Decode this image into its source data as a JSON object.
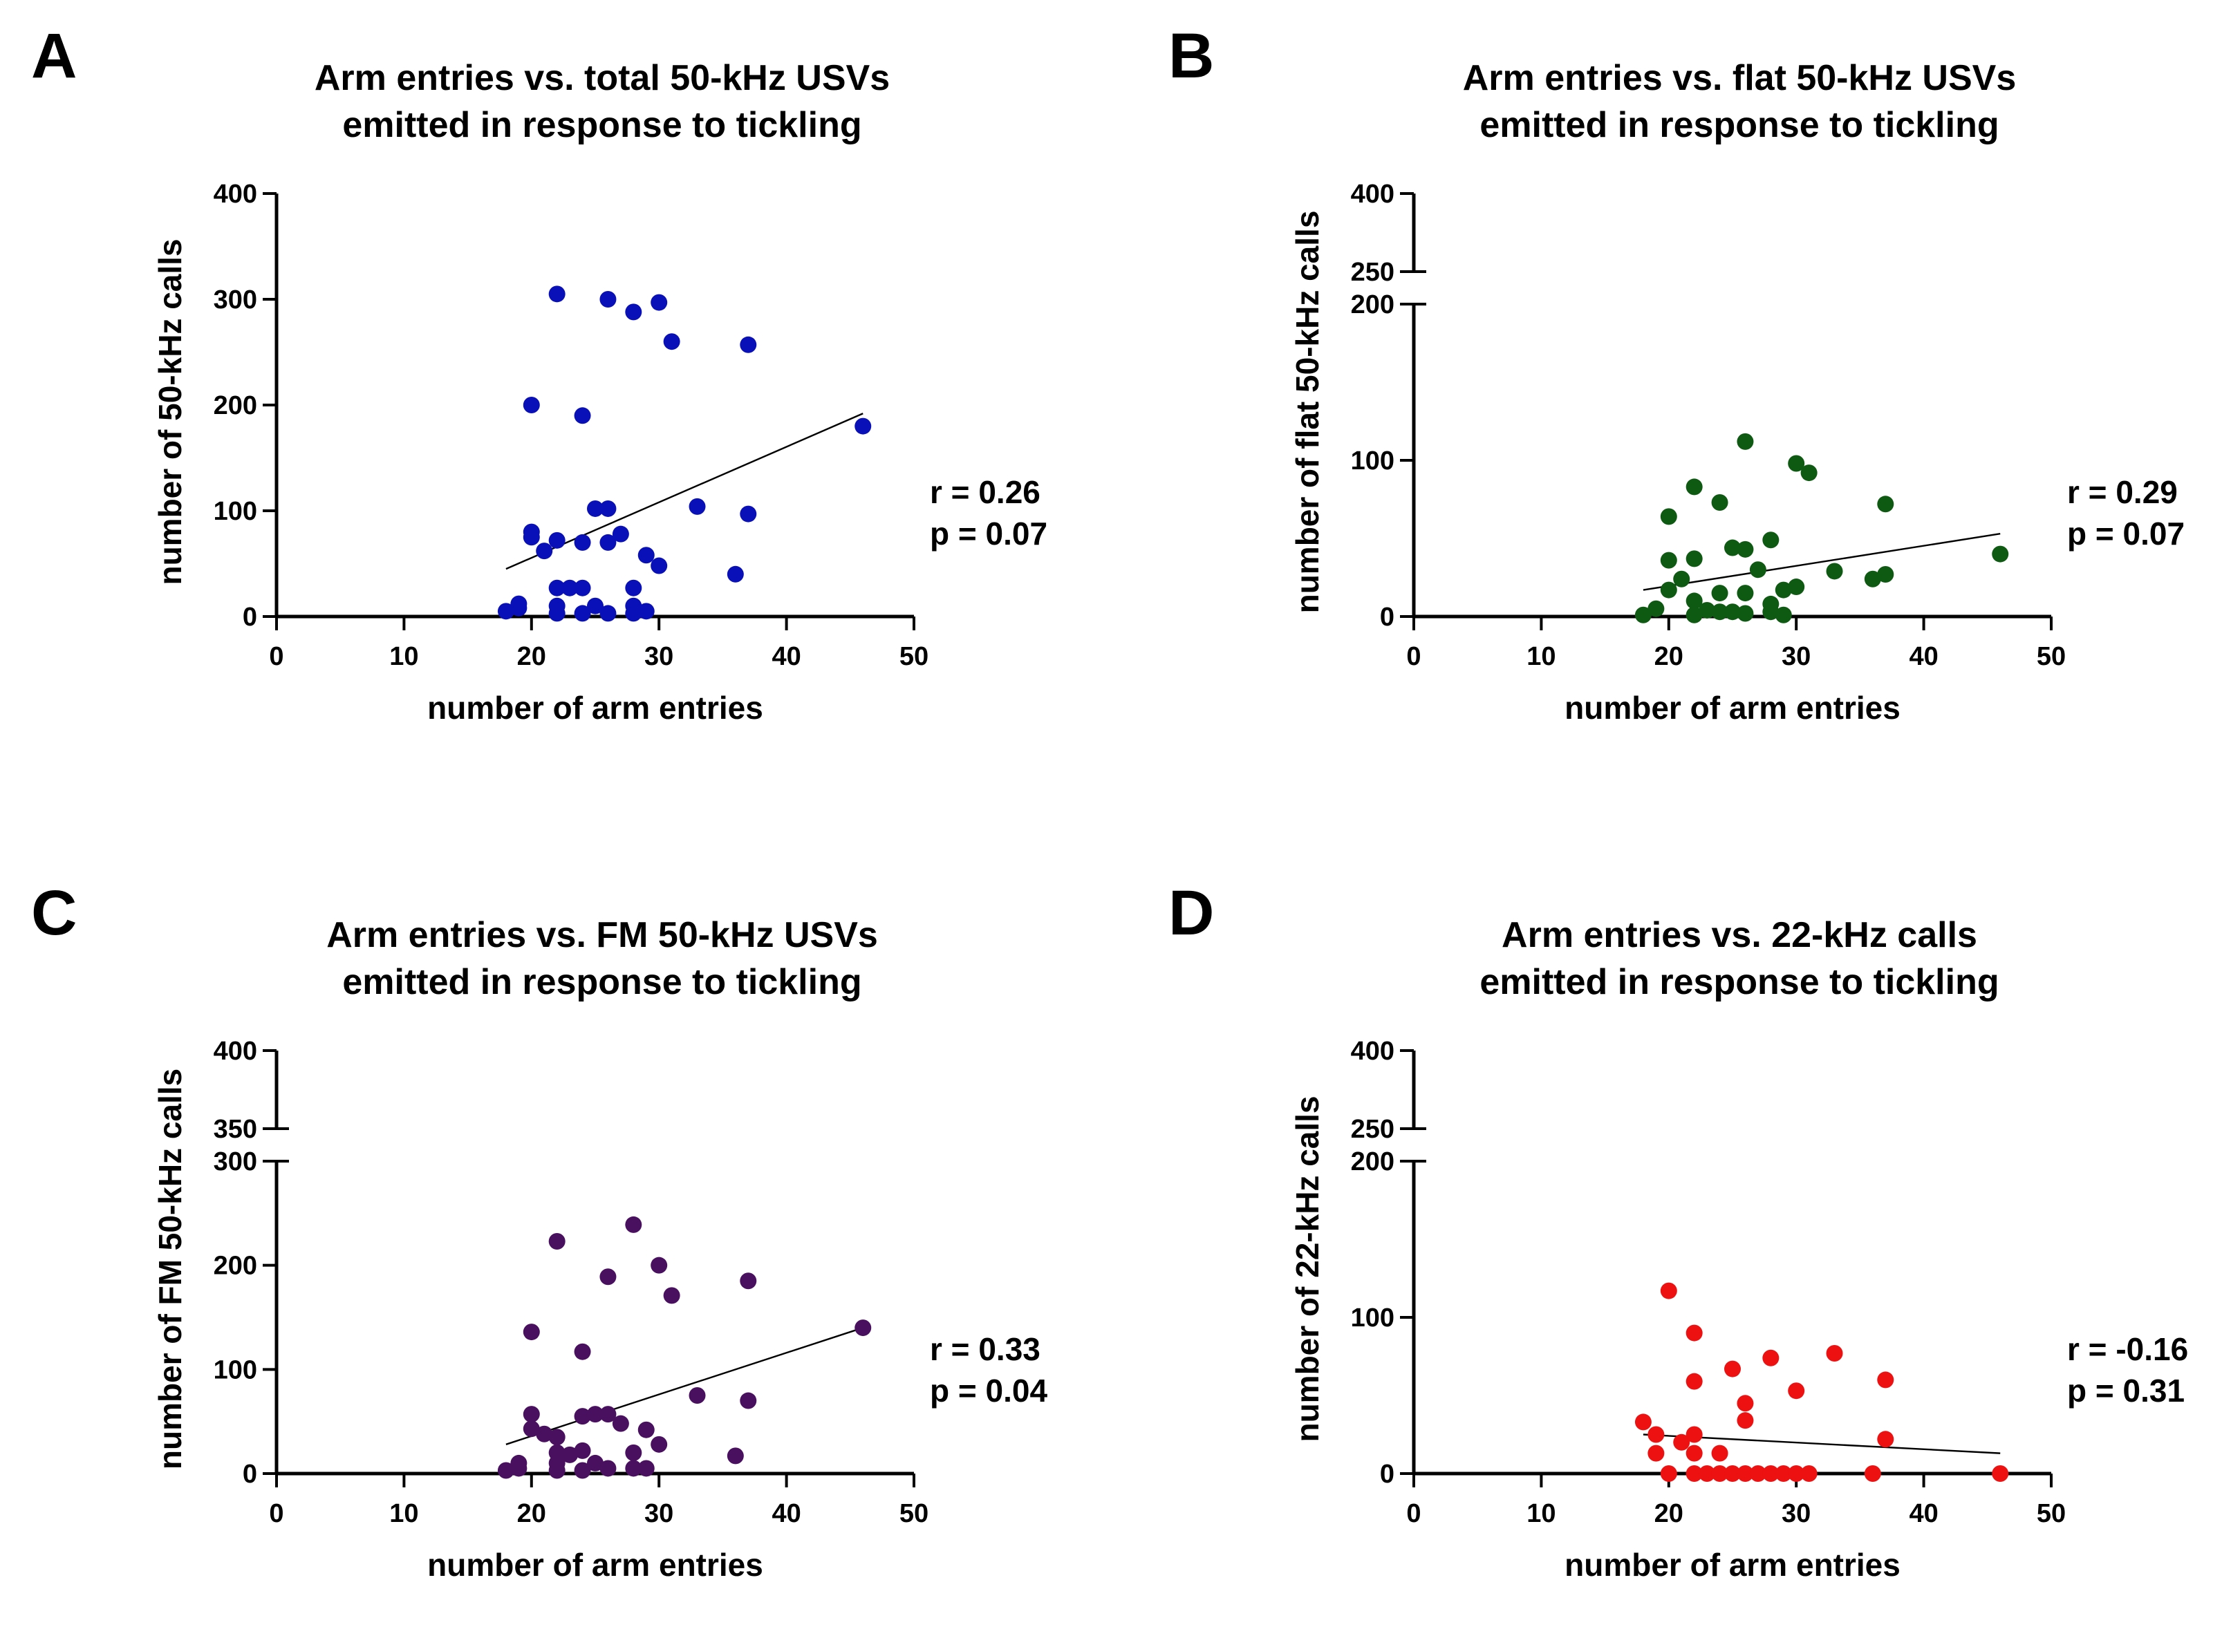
{
  "chart_data": [
    {
      "type": "scatter",
      "panel": "A",
      "title": [
        "Arm entries vs. total 50-kHz USVs",
        "emitted in response to tickling"
      ],
      "xlabel": "number of arm entries",
      "ylabel": "number of 50-kHz calls",
      "xlim": [
        0,
        50
      ],
      "xticks": [
        "0",
        "10",
        "20",
        "30",
        "40",
        "50"
      ],
      "ylim": [
        0,
        400
      ],
      "yticks": [
        "0",
        "100",
        "200",
        "300",
        "400"
      ],
      "color": "#0a10b8",
      "stats": [
        "r = 0.26",
        "p = 0.07"
      ],
      "fit": {
        "x": [
          18,
          46
        ],
        "y": [
          45,
          192
        ]
      },
      "points": [
        [
          18,
          5
        ],
        [
          19,
          8
        ],
        [
          19,
          12
        ],
        [
          20,
          80
        ],
        [
          20,
          75
        ],
        [
          20,
          200
        ],
        [
          21,
          62
        ],
        [
          22,
          305
        ],
        [
          22,
          72
        ],
        [
          22,
          27
        ],
        [
          22,
          10
        ],
        [
          22,
          3
        ],
        [
          23,
          27
        ],
        [
          24,
          190
        ],
        [
          24,
          70
        ],
        [
          24,
          27
        ],
        [
          24,
          3
        ],
        [
          25,
          102
        ],
        [
          25,
          10
        ],
        [
          26,
          300
        ],
        [
          26,
          102
        ],
        [
          26,
          70
        ],
        [
          26,
          3
        ],
        [
          27,
          78
        ],
        [
          28,
          288
        ],
        [
          28,
          27
        ],
        [
          28,
          10
        ],
        [
          28,
          3
        ],
        [
          29,
          58
        ],
        [
          29,
          5
        ],
        [
          30,
          297
        ],
        [
          30,
          48
        ],
        [
          31,
          260
        ],
        [
          33,
          104
        ],
        [
          36,
          40
        ],
        [
          37,
          257
        ],
        [
          37,
          97
        ],
        [
          46,
          180
        ]
      ]
    },
    {
      "type": "scatter",
      "panel": "B",
      "title": [
        "Arm entries vs. flat 50-kHz USVs",
        "emitted in response to tickling"
      ],
      "xlabel": "number of arm entries",
      "ylabel": "number of flat 50-kHz calls",
      "xlim": [
        0,
        50
      ],
      "xticks": [
        "0",
        "10",
        "20",
        "30",
        "40",
        "50"
      ],
      "ylim": [
        0,
        200
      ],
      "yticks": [
        "0",
        "100",
        "200"
      ],
      "break_ticks": [
        "250",
        "400"
      ],
      "color": "#0f5a12",
      "stats": [
        "r = 0.29",
        "p = 0.07"
      ],
      "fit": {
        "x": [
          18,
          46
        ],
        "y": [
          17,
          53
        ]
      },
      "points": [
        [
          18,
          1
        ],
        [
          19,
          5
        ],
        [
          20,
          64
        ],
        [
          20,
          36
        ],
        [
          20,
          17
        ],
        [
          21,
          24
        ],
        [
          22,
          83
        ],
        [
          22,
          37
        ],
        [
          22,
          10
        ],
        [
          22,
          1
        ],
        [
          23,
          4
        ],
        [
          24,
          73
        ],
        [
          24,
          15
        ],
        [
          24,
          3
        ],
        [
          25,
          44
        ],
        [
          25,
          3
        ],
        [
          26,
          112
        ],
        [
          26,
          43
        ],
        [
          26,
          15
        ],
        [
          26,
          2
        ],
        [
          27,
          30
        ],
        [
          28,
          49
        ],
        [
          28,
          8
        ],
        [
          28,
          3
        ],
        [
          29,
          17
        ],
        [
          29,
          1
        ],
        [
          30,
          98
        ],
        [
          30,
          19
        ],
        [
          31,
          92
        ],
        [
          33,
          29
        ],
        [
          36,
          24
        ],
        [
          37,
          72
        ],
        [
          37,
          27
        ],
        [
          46,
          40
        ]
      ]
    },
    {
      "type": "scatter",
      "panel": "C",
      "title": [
        "Arm entries vs. FM 50-kHz USVs",
        "emitted in response to tickling"
      ],
      "xlabel": "number of arm entries",
      "ylabel": "number of FM 50-kHz calls",
      "xlim": [
        0,
        50
      ],
      "xticks": [
        "0",
        "10",
        "20",
        "30",
        "40",
        "50"
      ],
      "ylim": [
        0,
        300
      ],
      "yticks": [
        "0",
        "100",
        "200",
        "300"
      ],
      "break_ticks": [
        "350",
        "400"
      ],
      "color": "#4a1060",
      "stats": [
        "r = 0.33",
        "p = 0.04"
      ],
      "fit": {
        "x": [
          18,
          46
        ],
        "y": [
          28,
          140
        ]
      },
      "points": [
        [
          18,
          3
        ],
        [
          19,
          5
        ],
        [
          19,
          10
        ],
        [
          20,
          136
        ],
        [
          20,
          57
        ],
        [
          20,
          43
        ],
        [
          21,
          38
        ],
        [
          22,
          223
        ],
        [
          22,
          35
        ],
        [
          22,
          20
        ],
        [
          22,
          10
        ],
        [
          22,
          3
        ],
        [
          23,
          18
        ],
        [
          24,
          117
        ],
        [
          24,
          55
        ],
        [
          24,
          22
        ],
        [
          24,
          3
        ],
        [
          25,
          57
        ],
        [
          25,
          10
        ],
        [
          26,
          189
        ],
        [
          26,
          57
        ],
        [
          26,
          5
        ],
        [
          27,
          48
        ],
        [
          28,
          239
        ],
        [
          28,
          20
        ],
        [
          28,
          5
        ],
        [
          29,
          42
        ],
        [
          29,
          5
        ],
        [
          30,
          200
        ],
        [
          30,
          28
        ],
        [
          31,
          171
        ],
        [
          33,
          75
        ],
        [
          36,
          17
        ],
        [
          37,
          185
        ],
        [
          37,
          70
        ],
        [
          46,
          140
        ]
      ]
    },
    {
      "type": "scatter",
      "panel": "D",
      "title": [
        "Arm entries vs. 22-kHz calls",
        "emitted in response to tickling"
      ],
      "xlabel": "number of arm entries",
      "ylabel": "number of 22-kHz calls",
      "xlim": [
        0,
        50
      ],
      "xticks": [
        "0",
        "10",
        "20",
        "30",
        "40",
        "50"
      ],
      "ylim": [
        0,
        200
      ],
      "yticks": [
        "0",
        "100",
        "200"
      ],
      "break_ticks": [
        "250",
        "400"
      ],
      "color": "#ee1111",
      "stats": [
        "r = -0.16",
        "p = 0.31"
      ],
      "fit": {
        "x": [
          18,
          46
        ],
        "y": [
          25,
          13
        ]
      },
      "points": [
        [
          18,
          33
        ],
        [
          19,
          25
        ],
        [
          19,
          13
        ],
        [
          20,
          117
        ],
        [
          20,
          0
        ],
        [
          21,
          20
        ],
        [
          22,
          90
        ],
        [
          22,
          59
        ],
        [
          22,
          25
        ],
        [
          22,
          13
        ],
        [
          22,
          0
        ],
        [
          23,
          0
        ],
        [
          24,
          13
        ],
        [
          24,
          0
        ],
        [
          25,
          67
        ],
        [
          25,
          0
        ],
        [
          26,
          45
        ],
        [
          26,
          34
        ],
        [
          26,
          0
        ],
        [
          27,
          0
        ],
        [
          28,
          74
        ],
        [
          28,
          0
        ],
        [
          29,
          0
        ],
        [
          30,
          53
        ],
        [
          30,
          0
        ],
        [
          31,
          0
        ],
        [
          33,
          77
        ],
        [
          36,
          0
        ],
        [
          37,
          60
        ],
        [
          37,
          22
        ],
        [
          46,
          0
        ]
      ]
    }
  ]
}
